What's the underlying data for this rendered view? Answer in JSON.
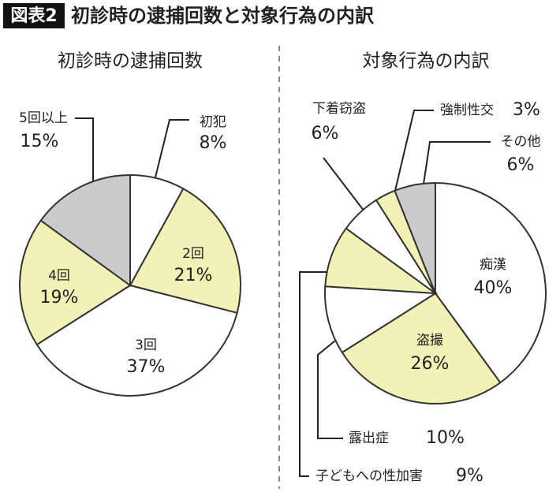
{
  "header": {
    "label": "図表2",
    "title": "初診時の逮捕回数と対象行為の内訳"
  },
  "chart_data": [
    {
      "type": "pie",
      "title": "初診時の逮捕回数",
      "categories": [
        "初犯",
        "2回",
        "3回",
        "4回",
        "5回以上"
      ],
      "values": [
        8,
        21,
        37,
        19,
        15
      ],
      "value_labels": [
        "8%",
        "21%",
        "37%",
        "19%",
        "15%"
      ],
      "colors": [
        "#ffffff",
        "#f3f2b6",
        "#ffffff",
        "#f3f2b6",
        "#cbcbcd"
      ]
    },
    {
      "type": "pie",
      "title": "対象行為の内訳",
      "categories": [
        "痴漢",
        "盗撮",
        "露出症",
        "子どもへの性加害",
        "下着窃盗",
        "強制性交",
        "その他"
      ],
      "values": [
        40,
        26,
        10,
        9,
        6,
        3,
        6
      ],
      "value_labels": [
        "40%",
        "26%",
        "10%",
        "9%",
        "6%",
        "3%",
        "6%"
      ],
      "colors": [
        "#ffffff",
        "#f3f2b6",
        "#ffffff",
        "#f3f2b6",
        "#ffffff",
        "#f3f2b6",
        "#cbcbcd"
      ]
    }
  ]
}
